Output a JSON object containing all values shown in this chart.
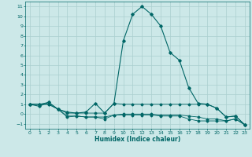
{
  "xlabel": "Humidex (Indice chaleur)",
  "background_color": "#cce8e8",
  "grid_color": "#aacfcf",
  "line_color": "#006666",
  "xlim": [
    -0.5,
    23.5
  ],
  "ylim": [
    -1.5,
    11.5
  ],
  "xticks": [
    0,
    1,
    2,
    3,
    4,
    5,
    6,
    7,
    8,
    9,
    10,
    11,
    12,
    13,
    14,
    15,
    16,
    17,
    18,
    19,
    20,
    21,
    22,
    23
  ],
  "yticks": [
    -1,
    0,
    1,
    2,
    3,
    4,
    5,
    6,
    7,
    8,
    9,
    10,
    11
  ],
  "line1_x": [
    0,
    1,
    2,
    3,
    4,
    5,
    6,
    7,
    8,
    9,
    10,
    11,
    12,
    13,
    14,
    15,
    16,
    17,
    18,
    19,
    20,
    21,
    22,
    23
  ],
  "line1_y": [
    1.0,
    0.8,
    1.2,
    0.5,
    0.2,
    0.1,
    0.2,
    1.1,
    0.1,
    1.1,
    7.5,
    10.2,
    11.0,
    10.2,
    9.0,
    6.3,
    5.5,
    2.7,
    1.1,
    1.0,
    0.6,
    -0.3,
    -0.2,
    -1.1
  ],
  "line2_x": [
    0,
    1,
    2,
    3,
    4,
    5,
    6,
    7,
    8,
    9,
    10,
    11,
    12,
    13,
    14,
    15,
    16,
    17,
    18,
    19,
    20,
    21,
    22,
    23
  ],
  "line2_y": [
    1.0,
    1.0,
    1.2,
    0.5,
    0.1,
    0.1,
    0.1,
    0.1,
    0.1,
    1.1,
    1.0,
    1.0,
    1.0,
    1.0,
    1.0,
    1.0,
    1.0,
    1.0,
    1.0,
    1.0,
    0.6,
    -0.3,
    -0.2,
    -1.1
  ],
  "line3_x": [
    0,
    1,
    2,
    3,
    4,
    5,
    6,
    7,
    8,
    9,
    10,
    11,
    12,
    13,
    14,
    15,
    16,
    17,
    18,
    19,
    20,
    21,
    22,
    23
  ],
  "line3_y": [
    1.0,
    1.0,
    1.0,
    0.5,
    -0.2,
    -0.2,
    -0.3,
    -0.3,
    -0.3,
    -0.1,
    0.0,
    0.0,
    0.0,
    0.0,
    -0.1,
    -0.1,
    -0.1,
    -0.2,
    -0.3,
    -0.5,
    -0.5,
    -0.7,
    -0.5,
    -1.1
  ],
  "line4_x": [
    0,
    1,
    2,
    3,
    4,
    5,
    6,
    7,
    8,
    9,
    10,
    11,
    12,
    13,
    14,
    15,
    16,
    17,
    18,
    19,
    20,
    21,
    22,
    23
  ],
  "line4_y": [
    1.0,
    1.0,
    1.0,
    0.5,
    -0.3,
    -0.2,
    -0.3,
    -0.3,
    -0.5,
    -0.1,
    -0.1,
    -0.1,
    -0.1,
    -0.1,
    -0.2,
    -0.2,
    -0.2,
    -0.5,
    -0.7,
    -0.7,
    -0.7,
    -0.7,
    -0.5,
    -1.1
  ],
  "xlabel_fontsize": 5.5,
  "tick_fontsize": 4.5
}
